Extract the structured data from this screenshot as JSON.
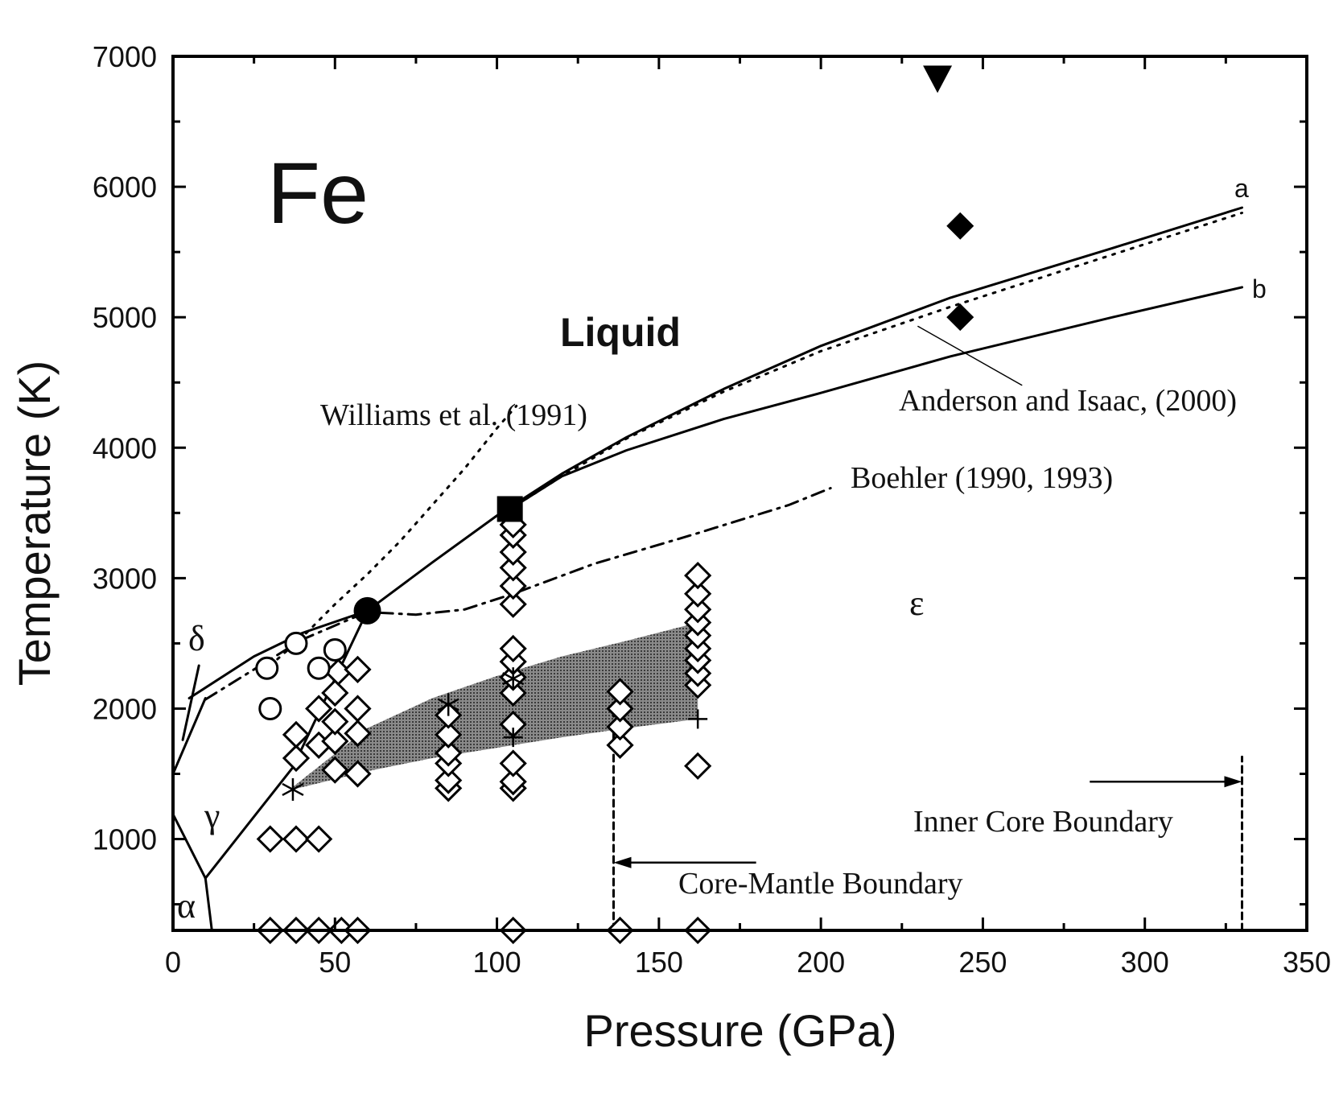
{
  "chart_data": {
    "type": "scatter",
    "title": "Fe",
    "xlabel": "Pressure (GPa)",
    "ylabel": "Temperature (K)",
    "xlim": [
      0,
      350
    ],
    "ylim": [
      300,
      7000
    ],
    "x_ticks": [
      0,
      50,
      100,
      150,
      200,
      250,
      300,
      350
    ],
    "y_ticks": [
      1000,
      2000,
      3000,
      4000,
      5000,
      6000,
      7000
    ],
    "grid": false,
    "region_labels": {
      "liquid": "Liquid",
      "epsilon": "ε",
      "gamma": "γ",
      "delta": "δ",
      "alpha": "α"
    },
    "annotations": {
      "williams": "Williams et al. (1991)",
      "boehler": "Boehler (1990, 1993)",
      "anderson": "Anderson and Isaac, (2000)",
      "curve_a": "a",
      "curve_b": "b",
      "icb": "Inner Core Boundary",
      "cmb": "Core-Mantle Boundary"
    },
    "lines": [
      {
        "id": "curve-a",
        "style": "solid",
        "points": [
          [
            5,
            2080
          ],
          [
            25,
            2400
          ],
          [
            40,
            2580
          ],
          [
            60,
            2750
          ],
          [
            80,
            3120
          ],
          [
            100,
            3480
          ],
          [
            120,
            3800
          ],
          [
            140,
            4080
          ],
          [
            170,
            4450
          ],
          [
            200,
            4780
          ],
          [
            240,
            5150
          ],
          [
            290,
            5530
          ],
          [
            330,
            5840
          ]
        ]
      },
      {
        "id": "curve-b",
        "style": "solid",
        "points": [
          [
            104,
            3530
          ],
          [
            120,
            3780
          ],
          [
            140,
            3980
          ],
          [
            170,
            4220
          ],
          [
            200,
            4420
          ],
          [
            240,
            4700
          ],
          [
            290,
            5000
          ],
          [
            330,
            5230
          ]
        ]
      },
      {
        "id": "anderson-dotted",
        "style": "dotted",
        "points": [
          [
            104,
            3530
          ],
          [
            120,
            3780
          ],
          [
            140,
            4070
          ],
          [
            170,
            4430
          ],
          [
            200,
            4740
          ],
          [
            240,
            5080
          ],
          [
            290,
            5480
          ],
          [
            330,
            5800
          ]
        ]
      },
      {
        "id": "williams-dotted",
        "style": "dotted",
        "points": [
          [
            30,
            2330
          ],
          [
            40,
            2550
          ],
          [
            50,
            2800
          ],
          [
            60,
            3030
          ],
          [
            70,
            3280
          ],
          [
            80,
            3560
          ],
          [
            90,
            3840
          ],
          [
            100,
            4150
          ],
          [
            106,
            4320
          ]
        ]
      },
      {
        "id": "boehler-dashdot",
        "style": "dashdot",
        "points": [
          [
            10,
            2070
          ],
          [
            25,
            2300
          ],
          [
            40,
            2530
          ],
          [
            55,
            2690
          ],
          [
            60,
            2740
          ],
          [
            75,
            2720
          ],
          [
            90,
            2760
          ],
          [
            105,
            2880
          ],
          [
            130,
            3110
          ],
          [
            160,
            3330
          ],
          [
            190,
            3560
          ],
          [
            203,
            3690
          ]
        ]
      },
      {
        "id": "alpha-gamma",
        "style": "solid",
        "points": [
          [
            0,
            1190
          ],
          [
            10,
            700
          ],
          [
            12,
            300
          ]
        ]
      },
      {
        "id": "gamma-epsilon",
        "style": "solid",
        "points": [
          [
            10,
            700
          ],
          [
            37,
            1550
          ],
          [
            60,
            2750
          ]
        ]
      },
      {
        "id": "delta-gamma",
        "style": "solid",
        "points": [
          [
            0,
            1500
          ],
          [
            10,
            2080
          ]
        ]
      },
      {
        "id": "delta-tick",
        "style": "solid",
        "points": [
          [
            3,
            1760
          ],
          [
            8,
            2330
          ]
        ]
      },
      {
        "id": "cmb-line",
        "style": "dashed",
        "points": [
          [
            136,
            300
          ],
          [
            136,
            1950
          ]
        ]
      },
      {
        "id": "icb-line",
        "style": "dashed",
        "points": [
          [
            330,
            300
          ],
          [
            330,
            1630
          ]
        ]
      },
      {
        "id": "anderson-leader",
        "style": "solid",
        "points": [
          [
            230,
            4930
          ],
          [
            262,
            4480
          ]
        ]
      }
    ],
    "band": {
      "upper": [
        [
          37,
          1400
        ],
        [
          60,
          1850
        ],
        [
          80,
          2080
        ],
        [
          100,
          2250
        ],
        [
          120,
          2400
        ],
        [
          140,
          2520
        ],
        [
          162,
          2660
        ]
      ],
      "lower": [
        [
          37,
          1380
        ],
        [
          60,
          1520
        ],
        [
          80,
          1620
        ],
        [
          100,
          1700
        ],
        [
          120,
          1780
        ],
        [
          140,
          1850
        ],
        [
          162,
          1920
        ]
      ]
    },
    "arrows": [
      {
        "id": "cmb-arrow",
        "from": [
          180,
          820
        ],
        "to": [
          136,
          820
        ]
      },
      {
        "id": "icb-arrow",
        "from": [
          283,
          1440
        ],
        "to": [
          330,
          1440
        ]
      }
    ],
    "series": [
      {
        "marker": "open-diamond",
        "points": [
          [
            30,
            300
          ],
          [
            38,
            300
          ],
          [
            45,
            300
          ],
          [
            52,
            300
          ],
          [
            57,
            300
          ],
          [
            105,
            300
          ],
          [
            138,
            300
          ],
          [
            162,
            300
          ],
          [
            30,
            1000
          ],
          [
            38,
            1000
          ],
          [
            45,
            1000
          ],
          [
            38,
            1620
          ],
          [
            38,
            1800
          ],
          [
            45,
            1720
          ],
          [
            45,
            2000
          ],
          [
            50,
            1530
          ],
          [
            50,
            1750
          ],
          [
            50,
            1900
          ],
          [
            50,
            2120
          ],
          [
            51,
            2280
          ],
          [
            57,
            1500
          ],
          [
            57,
            1810
          ],
          [
            57,
            2000
          ],
          [
            57,
            2300
          ],
          [
            85,
            1390
          ],
          [
            85,
            1450
          ],
          [
            85,
            1580
          ],
          [
            85,
            1660
          ],
          [
            85,
            1800
          ],
          [
            85,
            1950
          ],
          [
            105,
            1390
          ],
          [
            105,
            1440
          ],
          [
            105,
            1580
          ],
          [
            105,
            1880
          ],
          [
            105,
            2120
          ],
          [
            105,
            2240
          ],
          [
            105,
            2360
          ],
          [
            105,
            2460
          ],
          [
            105,
            2800
          ],
          [
            105,
            2940
          ],
          [
            105,
            3080
          ],
          [
            105,
            3200
          ],
          [
            105,
            3330
          ],
          [
            105,
            3410
          ],
          [
            138,
            1720
          ],
          [
            138,
            1860
          ],
          [
            138,
            2000
          ],
          [
            138,
            2130
          ],
          [
            162,
            1560
          ],
          [
            162,
            2180
          ],
          [
            162,
            2270
          ],
          [
            162,
            2370
          ],
          [
            162,
            2460
          ],
          [
            162,
            2560
          ],
          [
            162,
            2660
          ],
          [
            162,
            2760
          ],
          [
            162,
            2880
          ],
          [
            162,
            3020
          ]
        ]
      },
      {
        "marker": "open-circle",
        "points": [
          [
            30,
            2000
          ],
          [
            29,
            2310
          ],
          [
            38,
            2500
          ],
          [
            45,
            2310
          ],
          [
            50,
            2450
          ]
        ]
      },
      {
        "marker": "filled-circle",
        "points": [
          [
            60,
            2750
          ]
        ]
      },
      {
        "marker": "filled-square",
        "points": [
          [
            104,
            3530
          ]
        ]
      },
      {
        "marker": "filled-diamond",
        "points": [
          [
            243,
            5000
          ],
          [
            243,
            5700
          ]
        ]
      },
      {
        "marker": "filled-triangle-down",
        "points": [
          [
            236,
            6830
          ]
        ]
      },
      {
        "marker": "asterisk",
        "points": [
          [
            37,
            1380
          ],
          [
            85,
            2030
          ],
          [
            105,
            2230
          ]
        ]
      },
      {
        "marker": "plus",
        "points": [
          [
            162,
            1920
          ],
          [
            105,
            1780
          ]
        ]
      }
    ]
  }
}
